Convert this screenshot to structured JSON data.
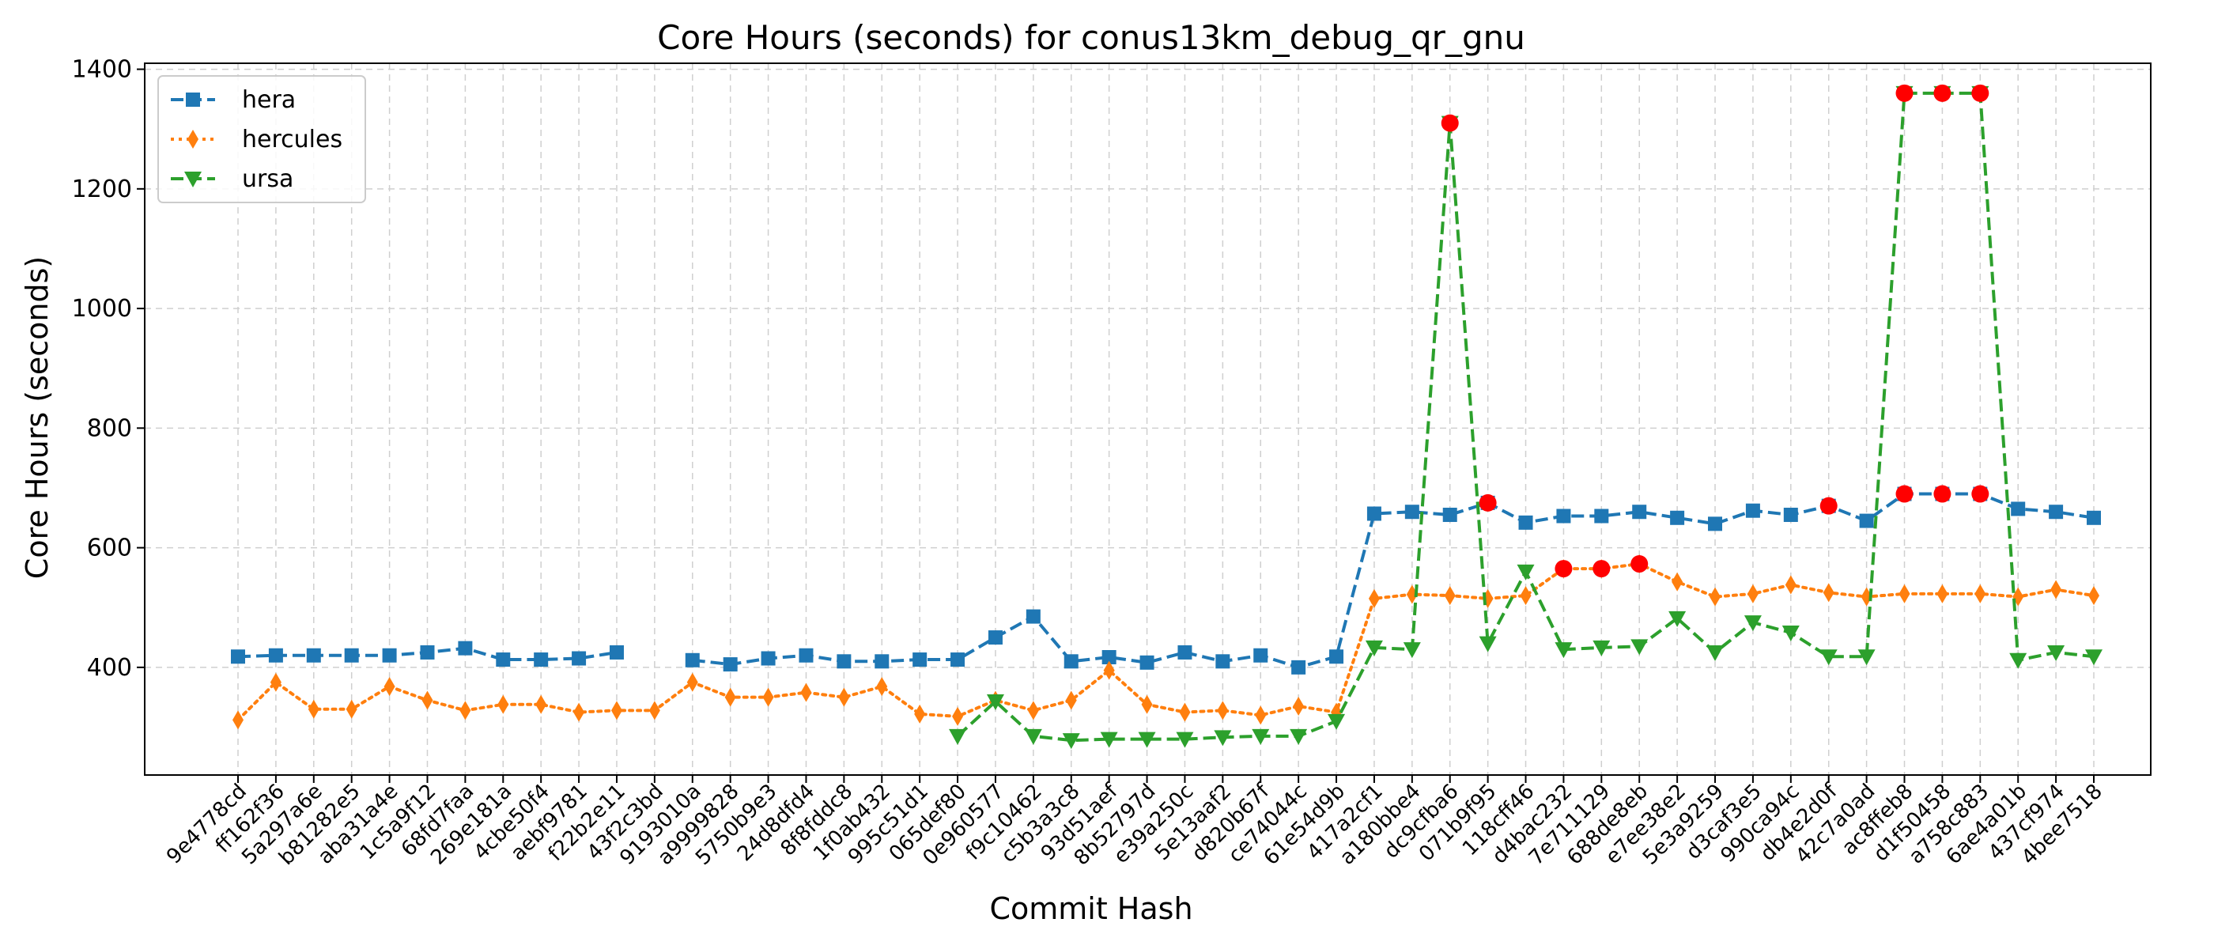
{
  "chart_data": {
    "type": "line",
    "title": "Core Hours (seconds) for conus13km_debug_qr_gnu",
    "xlabel": "Commit Hash",
    "ylabel": "Core Hours (seconds)",
    "ylim": [
      220,
      1410
    ],
    "yticks": [
      400,
      600,
      800,
      1000,
      1200,
      1400
    ],
    "grid": true,
    "legend_position": "top-left",
    "categories": [
      "9e4778cd",
      "ff162f36",
      "5a297a6e",
      "b81282e5",
      "aba31a4e",
      "1c5a9f12",
      "68fd7faa",
      "269e181a",
      "4cbe50f4",
      "aebf9781",
      "f22b2e11",
      "43f2c3bd",
      "9193010a",
      "a9999828",
      "5750b9e3",
      "24d8dfd4",
      "8f8fddc8",
      "1f0ab432",
      "995c51d1",
      "065def80",
      "0e960577",
      "f9c10462",
      "c5b3a3c8",
      "93d51aef",
      "8b52797d",
      "e39a250c",
      "5e13aaf2",
      "d820b67f",
      "ce74044c",
      "61e54d9b",
      "417a2cf1",
      "a180bbe4",
      "dc9cfba6",
      "071b9f95",
      "118cff46",
      "d4bac232",
      "7e711129",
      "688de8eb",
      "e7ee38e2",
      "5e3a9259",
      "d3caf3e5",
      "990ca94c",
      "db4e2d0f",
      "42c7a0ad",
      "ac8ffeb8",
      "d1f50458",
      "a758c883",
      "6ae4a01b",
      "437cf974",
      "4bee7518"
    ],
    "series": [
      {
        "name": "hera",
        "color": "#1f77b4",
        "marker": "square",
        "linestyle": "dashed",
        "values": [
          418,
          420,
          420,
          420,
          420,
          425,
          432,
          413,
          413,
          415,
          425,
          null,
          412,
          405,
          415,
          420,
          410,
          410,
          413,
          413,
          450,
          485,
          410,
          417,
          408,
          425,
          410,
          420,
          400,
          418,
          657,
          660,
          655,
          675,
          642,
          653,
          653,
          660,
          650,
          640,
          662,
          655,
          670,
          645,
          690,
          690,
          690,
          665,
          660,
          650
        ]
      },
      {
        "name": "hercules",
        "color": "#ff7f0e",
        "marker": "thin_diamond",
        "linestyle": "dotted",
        "values": [
          312,
          375,
          330,
          330,
          368,
          345,
          328,
          338,
          338,
          325,
          328,
          328,
          375,
          350,
          350,
          358,
          350,
          368,
          322,
          318,
          345,
          328,
          345,
          395,
          338,
          325,
          328,
          320,
          335,
          325,
          515,
          522,
          520,
          515,
          520,
          565,
          565,
          573,
          543,
          518,
          523,
          538,
          525,
          518,
          523,
          523,
          523,
          518,
          530,
          520
        ]
      },
      {
        "name": "ursa",
        "color": "#2ca02c",
        "marker": "triangle_down",
        "linestyle": "dashed",
        "values": [
          null,
          null,
          null,
          null,
          null,
          null,
          null,
          null,
          null,
          null,
          null,
          null,
          null,
          null,
          null,
          null,
          null,
          null,
          null,
          285,
          343,
          285,
          278,
          280,
          280,
          280,
          283,
          285,
          285,
          310,
          433,
          430,
          1310,
          440,
          560,
          430,
          433,
          435,
          482,
          425,
          475,
          458,
          418,
          418,
          1360,
          1360,
          1360,
          412,
          425,
          418
        ]
      }
    ],
    "highlights": [
      {
        "series": "ursa",
        "category": "dc9cfba6",
        "value": 1310
      },
      {
        "series": "ursa",
        "category": "ac8ffeb8",
        "value": 1360
      },
      {
        "series": "ursa",
        "category": "d1f50458",
        "value": 1360
      },
      {
        "series": "ursa",
        "category": "a758c883",
        "value": 1360
      },
      {
        "series": "hera",
        "category": "071b9f95",
        "value": 675
      },
      {
        "series": "hera",
        "category": "db4e2d0f",
        "value": 670
      },
      {
        "series": "hera",
        "category": "ac8ffeb8",
        "value": 690
      },
      {
        "series": "hera",
        "category": "d1f50458",
        "value": 690
      },
      {
        "series": "hera",
        "category": "a758c883",
        "value": 690
      },
      {
        "series": "hercules",
        "category": "d4bac232",
        "value": 565
      },
      {
        "series": "hercules",
        "category": "7e711129",
        "value": 565
      },
      {
        "series": "hercules",
        "category": "688de8eb",
        "value": 573
      }
    ],
    "highlight_color": "#ff0000"
  }
}
